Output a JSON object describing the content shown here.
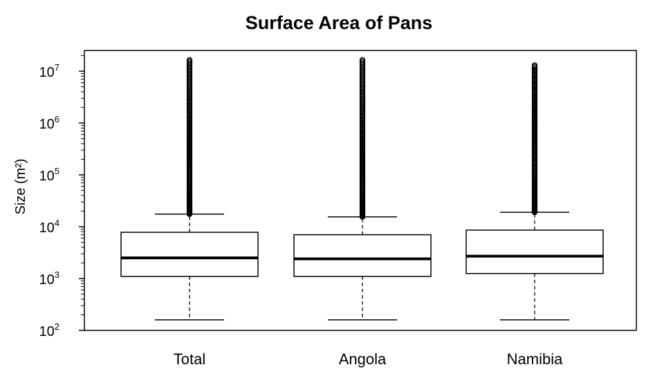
{
  "chart_data": {
    "type": "boxplot",
    "title": "Surface Area of Pans",
    "xlabel": "",
    "ylabel": "Size (m²)",
    "y_scale": "log10",
    "ylim": [
      100,
      20000000
    ],
    "y_ticks": [
      {
        "base": "10",
        "exp": "2",
        "value": 100
      },
      {
        "base": "10",
        "exp": "3",
        "value": 1000
      },
      {
        "base": "10",
        "exp": "4",
        "value": 10000
      },
      {
        "base": "10",
        "exp": "5",
        "value": 100000
      },
      {
        "base": "10",
        "exp": "6",
        "value": 1000000
      },
      {
        "base": "10",
        "exp": "7",
        "value": 10000000
      }
    ],
    "grid": false,
    "legend": "none",
    "categories": [
      "Total",
      "Angola",
      "Namibia"
    ],
    "boxes": [
      {
        "category": "Total",
        "whisker_low": 160,
        "q1": 1100,
        "median": 2500,
        "q3": 7800,
        "whisker_high": 17500,
        "outlier_min": 17500,
        "outlier_max": 16500000
      },
      {
        "category": "Angola",
        "whisker_low": 160,
        "q1": 1100,
        "median": 2400,
        "q3": 7000,
        "whisker_high": 15500,
        "outlier_min": 15500,
        "outlier_max": 16500000
      },
      {
        "category": "Namibia",
        "whisker_low": 160,
        "q1": 1250,
        "median": 2700,
        "q3": 8600,
        "whisker_high": 19000,
        "outlier_min": 19000,
        "outlier_max": 13000000
      }
    ]
  }
}
